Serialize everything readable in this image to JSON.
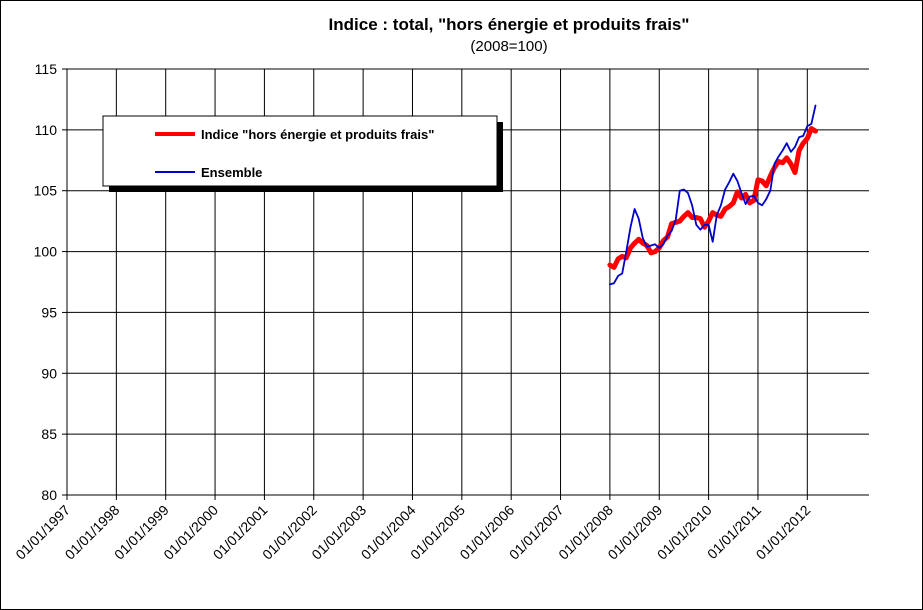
{
  "chart_data": {
    "type": "line",
    "title": "Indice : total, \"hors énergie et produits frais\"",
    "subtitle": "(2008=100)",
    "xlabel": "",
    "ylabel": "",
    "ylim": [
      80,
      115
    ],
    "yticks": [
      "80",
      "85",
      "90",
      "95",
      "100",
      "105",
      "110",
      "115"
    ],
    "x_tick_labels": [
      "01/01/1997",
      "01/01/1998",
      "01/01/1999",
      "01/01/2000",
      "01/01/2001",
      "01/01/2002",
      "01/01/2003",
      "01/01/2004",
      "01/01/2005",
      "01/01/2006",
      "01/01/2007",
      "01/01/2008",
      "01/01/2009",
      "01/01/2010",
      "01/01/2011",
      "01/01/2012"
    ],
    "x_range": [
      "1997-01",
      "2013-04"
    ],
    "grid": true,
    "legend_position": "top-left",
    "series": [
      {
        "name": "Indice \"hors énergie et produits frais\"",
        "color": "#ff0000",
        "x": [
          "2008-01",
          "2008-02",
          "2008-03",
          "2008-04",
          "2008-05",
          "2008-06",
          "2008-07",
          "2008-08",
          "2008-09",
          "2008-10",
          "2008-11",
          "2008-12",
          "2009-01",
          "2009-02",
          "2009-03",
          "2009-04",
          "2009-05",
          "2009-06",
          "2009-07",
          "2009-08",
          "2009-09",
          "2009-10",
          "2009-11",
          "2009-12",
          "2010-01",
          "2010-02",
          "2010-03",
          "2010-04",
          "2010-05",
          "2010-06",
          "2010-07",
          "2010-08",
          "2010-09",
          "2010-10",
          "2010-11",
          "2010-12",
          "2011-01",
          "2011-02",
          "2011-03",
          "2011-04",
          "2011-05",
          "2011-06",
          "2011-07",
          "2011-08",
          "2011-09",
          "2011-10",
          "2011-11",
          "2011-12",
          "2012-01",
          "2012-02",
          "2012-03",
          "2012-04"
        ],
        "values": [
          98.9,
          98.7,
          99.4,
          99.6,
          99.5,
          100.3,
          100.7,
          101.0,
          100.7,
          100.5,
          99.9,
          100.0,
          100.3,
          100.9,
          101.2,
          102.3,
          102.4,
          102.5,
          102.9,
          103.2,
          102.8,
          102.8,
          102.7,
          102.0,
          102.5,
          103.2,
          103.0,
          102.9,
          103.5,
          103.7,
          104.0,
          104.9,
          104.4,
          104.7,
          104.0,
          104.2,
          105.9,
          105.8,
          105.4,
          106.2,
          106.9,
          107.4,
          107.3,
          107.7,
          107.2,
          106.5,
          108.3,
          108.9,
          109.3,
          110.1,
          109.9,
          null
        ]
      },
      {
        "name": "Ensemble",
        "color": "#0000cc",
        "x": [
          "2008-01",
          "2008-02",
          "2008-03",
          "2008-04",
          "2008-05",
          "2008-06",
          "2008-07",
          "2008-08",
          "2008-09",
          "2008-10",
          "2008-11",
          "2008-12",
          "2009-01",
          "2009-02",
          "2009-03",
          "2009-04",
          "2009-05",
          "2009-06",
          "2009-07",
          "2009-08",
          "2009-09",
          "2009-10",
          "2009-11",
          "2009-12",
          "2010-01",
          "2010-02",
          "2010-03",
          "2010-04",
          "2010-05",
          "2010-06",
          "2010-07",
          "2010-08",
          "2010-09",
          "2010-10",
          "2010-11",
          "2010-12",
          "2011-01",
          "2011-02",
          "2011-03",
          "2011-04",
          "2011-05",
          "2011-06",
          "2011-07",
          "2011-08",
          "2011-09",
          "2011-10",
          "2011-11",
          "2011-12",
          "2012-01",
          "2012-02",
          "2012-03",
          "2012-04"
        ],
        "values": [
          97.3,
          97.4,
          98.0,
          98.2,
          100.0,
          102.0,
          103.5,
          102.7,
          101.1,
          100.4,
          100.5,
          100.6,
          100.3,
          100.6,
          101.3,
          101.7,
          102.6,
          105.0,
          105.1,
          104.8,
          103.8,
          102.2,
          101.8,
          102.2,
          102.2,
          100.8,
          103.0,
          103.8,
          105.1,
          105.7,
          106.4,
          105.8,
          104.8,
          103.9,
          104.5,
          104.6,
          104.0,
          103.8,
          104.3,
          105.0,
          107.2,
          107.8,
          108.3,
          108.9,
          108.2,
          108.6,
          109.4,
          109.5,
          110.3,
          110.5,
          112.0,
          null
        ]
      }
    ]
  }
}
